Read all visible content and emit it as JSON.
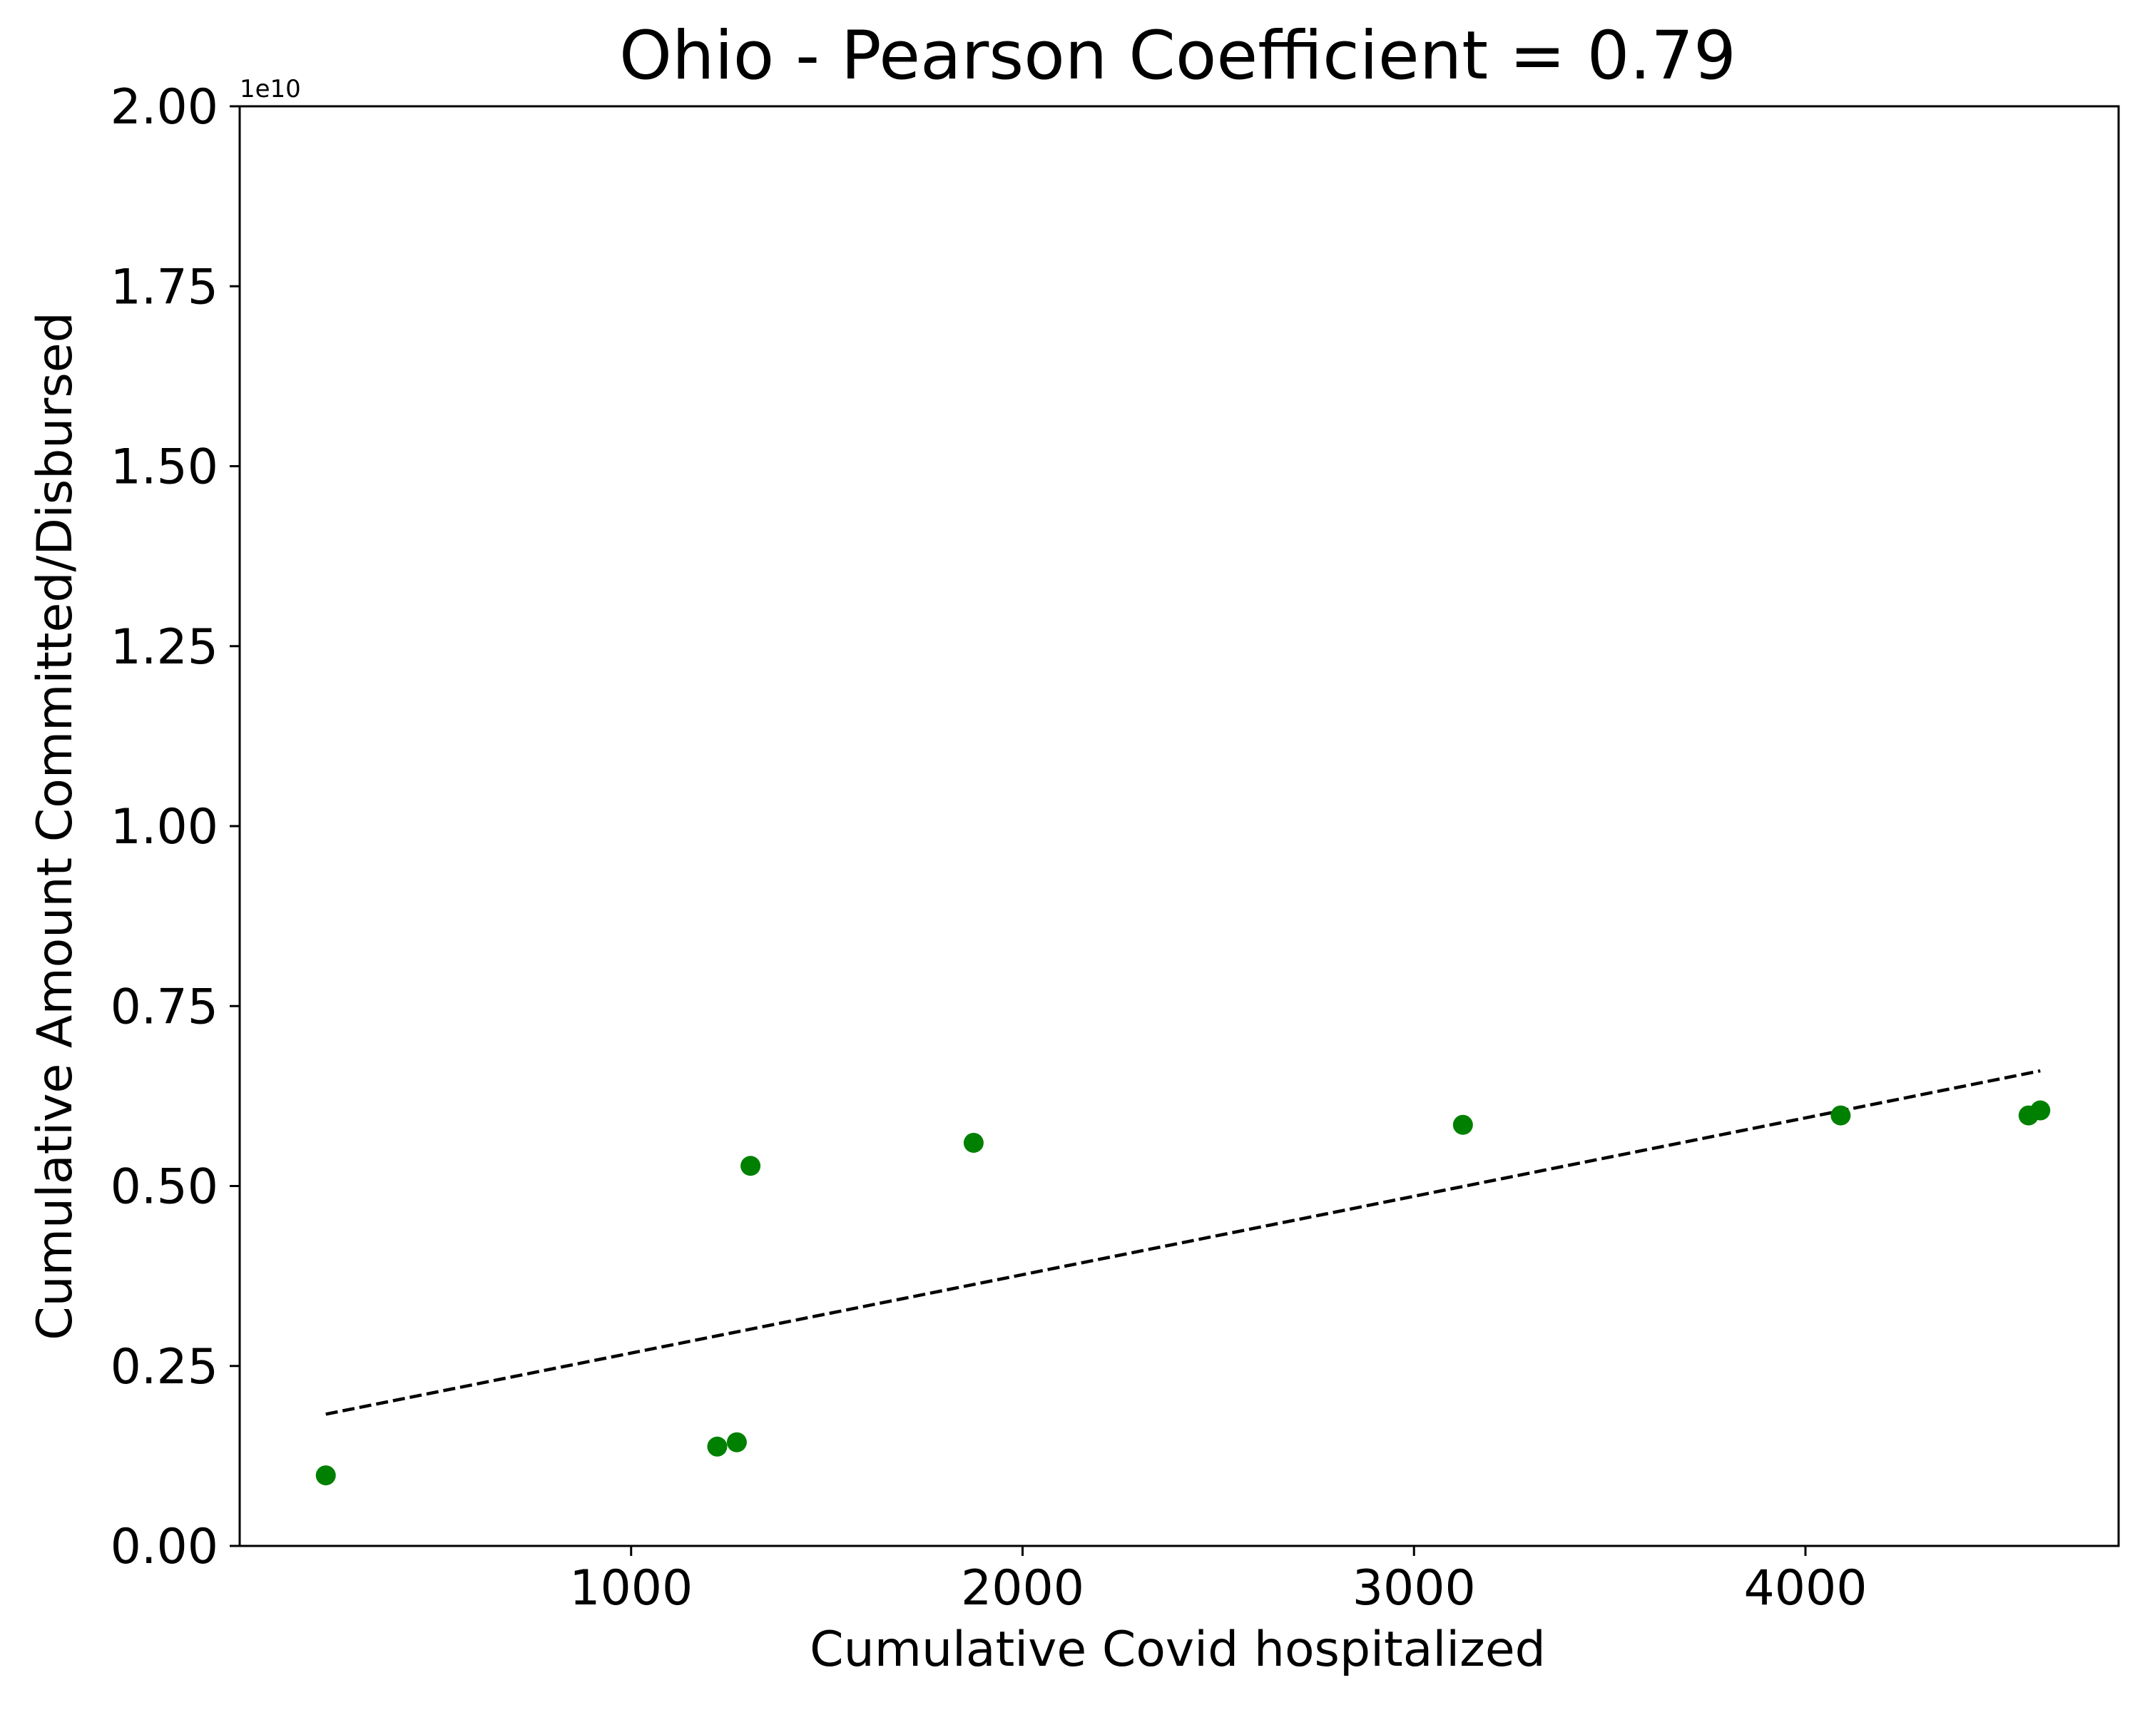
{
  "chart_data": {
    "type": "scatter",
    "title": "Ohio - Pearson Coefficient = 0.79",
    "xlabel": "Cumulative Covid hospitalized",
    "ylabel": "Cumulative Amount Committed/Disbursed",
    "y_offset_label": "1e10",
    "xlim": [
      0,
      4800
    ],
    "ylim": [
      0,
      2.0
    ],
    "x_ticks": [
      1000,
      2000,
      3000,
      4000
    ],
    "x_tick_labels": [
      "1000",
      "2000",
      "3000",
      "4000"
    ],
    "y_ticks": [
      0,
      0.25,
      0.5,
      0.75,
      1.0,
      1.25,
      1.5,
      1.75,
      2.0
    ],
    "y_tick_labels": [
      "0.00",
      "0.25",
      "0.50",
      "0.75",
      "1.00",
      "1.25",
      "1.50",
      "1.75",
      "2.00"
    ],
    "grid": false,
    "marker_color": "#008000",
    "trendline_color": "#000000",
    "series": [
      {
        "points": [
          {
            "x": 220,
            "y": 0.098
          },
          {
            "x": 1220,
            "y": 0.138
          },
          {
            "x": 1270,
            "y": 0.144
          },
          {
            "x": 1305,
            "y": 0.528
          },
          {
            "x": 1875,
            "y": 0.56
          },
          {
            "x": 3125,
            "y": 0.585
          },
          {
            "x": 4090,
            "y": 0.598
          },
          {
            "x": 4570,
            "y": 0.598
          },
          {
            "x": 4600,
            "y": 0.605
          }
        ]
      }
    ],
    "trendline": {
      "style": "dashed",
      "start": {
        "x": 220,
        "y": 0.183
      },
      "end": {
        "x": 4600,
        "y": 0.66
      }
    }
  }
}
